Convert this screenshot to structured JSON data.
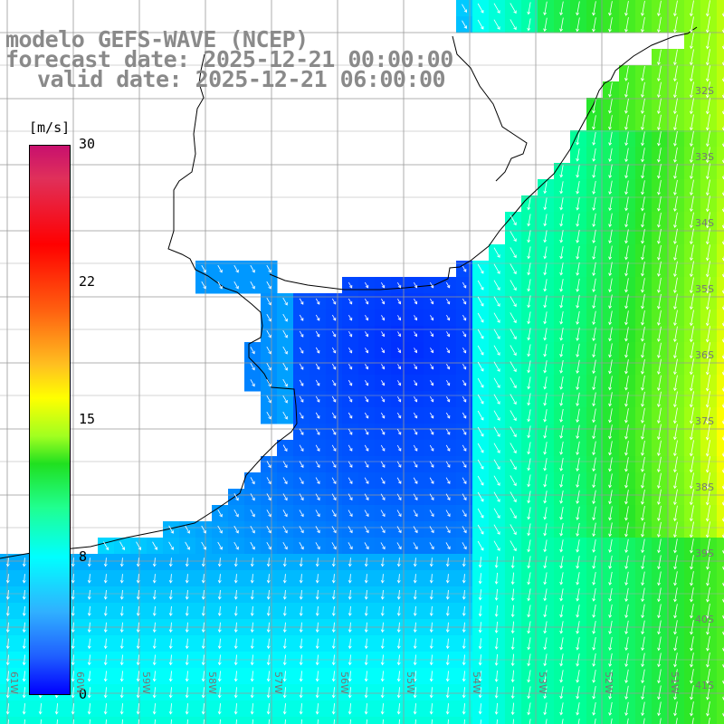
{
  "title": {
    "line1": "modelo GEFS-WAVE (NCEP)",
    "line2": "forecast date: 2025-12-21 00:00:00",
    "line3": "valid date: 2025-12-21 06:00:00"
  },
  "colorbar": {
    "unit": "[m/s]",
    "ticks": [
      {
        "label": "30",
        "value": 30
      },
      {
        "label": "22",
        "value": 22
      },
      {
        "label": "15",
        "value": 15
      },
      {
        "label": "8",
        "value": 8
      },
      {
        "label": "0",
        "value": 0
      }
    ],
    "colors": [
      "#0000ff",
      "#00ffff",
      "#20e020",
      "#ffff00",
      "#ff0000",
      "#c8106e"
    ]
  },
  "axes": {
    "lon_labels": [
      "61W",
      "60W",
      "59W",
      "58W",
      "57W",
      "56W",
      "55W",
      "54W",
      "53W",
      "52W",
      "51W"
    ],
    "lat_labels": [
      "32S",
      "33S",
      "34S",
      "35S",
      "36S",
      "37S",
      "38S",
      "39S",
      "40S",
      "41S"
    ]
  },
  "map": {
    "land_color": "#ffffff",
    "coastline_color": "#000000",
    "grid_color": "#999999",
    "arrow_color": "#ffffff"
  }
}
